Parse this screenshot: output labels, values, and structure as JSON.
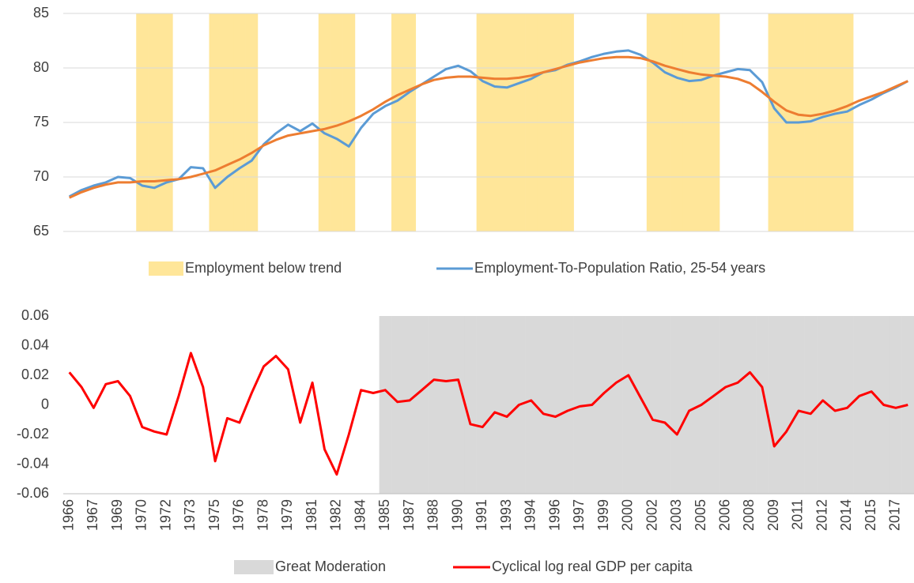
{
  "chart_data": [
    {
      "type": "combo",
      "ylim": [
        65,
        85
      ],
      "yticks": [
        65,
        70,
        75,
        80,
        85
      ],
      "grid": true,
      "series": [
        {
          "name": "Employment below trend",
          "kind": "bar",
          "color": "#ffe699",
          "values": [
            null,
            null,
            null,
            null,
            null,
            null,
            85,
            85,
            85,
            null,
            null,
            null,
            85,
            85,
            85,
            85,
            null,
            null,
            null,
            null,
            null,
            85,
            85,
            85,
            null,
            null,
            null,
            85,
            85,
            null,
            null,
            null,
            null,
            null,
            85,
            85,
            85,
            85,
            85,
            85,
            85,
            85,
            null,
            null,
            null,
            null,
            null,
            null,
            85,
            85,
            85,
            85,
            85,
            85,
            null,
            null,
            null,
            null,
            85,
            85,
            85,
            85,
            85,
            85,
            85,
            null,
            null,
            null,
            null,
            null
          ]
        },
        {
          "name": "Employment-To-Population Ratio, 25-54 years",
          "kind": "line",
          "color": "#5b9bd5",
          "values": [
            68.2,
            68.8,
            69.2,
            69.5,
            70.0,
            69.9,
            69.2,
            69.0,
            69.5,
            69.8,
            70.9,
            70.8,
            69.0,
            70.0,
            70.8,
            71.5,
            73.0,
            74.0,
            74.8,
            74.2,
            74.9,
            74.0,
            73.5,
            72.8,
            74.5,
            75.8,
            76.5,
            77.0,
            77.8,
            78.5,
            79.2,
            79.9,
            80.2,
            79.7,
            78.8,
            78.3,
            78.2,
            78.6,
            79.0,
            79.6,
            79.8,
            80.3,
            80.6,
            81.0,
            81.3,
            81.5,
            81.6,
            81.2,
            80.5,
            79.6,
            79.1,
            78.8,
            78.9,
            79.3,
            79.6,
            79.9,
            79.8,
            78.7,
            76.3,
            75.0,
            75.0,
            75.1,
            75.5,
            75.8,
            76.0,
            76.6,
            77.1,
            77.7,
            78.2,
            78.8
          ]
        },
        {
          "kind": "line",
          "color": "#ed7d31",
          "values": [
            68.1,
            68.6,
            69.0,
            69.3,
            69.5,
            69.5,
            69.6,
            69.6,
            69.7,
            69.8,
            70.0,
            70.3,
            70.6,
            71.1,
            71.6,
            72.2,
            72.9,
            73.4,
            73.8,
            74.0,
            74.2,
            74.4,
            74.7,
            75.1,
            75.6,
            76.2,
            76.9,
            77.5,
            78.0,
            78.5,
            78.9,
            79.1,
            79.2,
            79.2,
            79.1,
            79.0,
            79.0,
            79.1,
            79.3,
            79.6,
            79.9,
            80.2,
            80.5,
            80.7,
            80.9,
            81.0,
            81.0,
            80.9,
            80.6,
            80.2,
            79.9,
            79.6,
            79.4,
            79.3,
            79.2,
            79.0,
            78.6,
            77.8,
            76.9,
            76.1,
            75.7,
            75.6,
            75.8,
            76.1,
            76.5,
            77.0,
            77.4,
            77.8,
            78.3,
            78.8
          ]
        }
      ]
    },
    {
      "type": "combo",
      "ylim": [
        -0.06,
        0.06
      ],
      "yticks": [
        -0.06,
        -0.04,
        -0.02,
        0,
        0.02,
        0.04,
        0.06
      ],
      "grid": false,
      "categories": [
        "1966",
        null,
        "1967",
        null,
        "1969",
        null,
        "1970",
        null,
        "1972",
        null,
        "1973",
        null,
        "1975",
        null,
        "1976",
        null,
        "1978",
        null,
        "1979",
        null,
        "1981",
        null,
        "1982",
        null,
        "1984",
        null,
        "1985",
        null,
        "1987",
        null,
        "1988",
        null,
        "1990",
        null,
        "1991",
        null,
        "1993",
        null,
        "1994",
        null,
        "1996",
        null,
        "1997",
        null,
        "1999",
        null,
        "2000",
        null,
        "2002",
        null,
        "2003",
        null,
        "2005",
        null,
        "2006",
        null,
        "2008",
        null,
        "2009",
        null,
        "2011",
        null,
        "2012",
        null,
        "2014",
        null,
        "2015",
        null,
        "2017",
        null
      ],
      "series": [
        {
          "name": "Great Moderation",
          "kind": "bar",
          "color": "#d9d9d9",
          "values": [
            null,
            null,
            null,
            null,
            null,
            null,
            null,
            null,
            null,
            null,
            null,
            null,
            null,
            null,
            null,
            null,
            null,
            null,
            null,
            null,
            null,
            null,
            null,
            null,
            null,
            null,
            0.06,
            0.06,
            0.06,
            0.06,
            0.06,
            0.06,
            0.06,
            0.06,
            0.06,
            0.06,
            0.06,
            0.06,
            0.06,
            0.06,
            0.06,
            0.06,
            0.06,
            0.06,
            0.06,
            0.06,
            0.06,
            0.06,
            0.06,
            0.06,
            0.06,
            0.06,
            0.06,
            0.06,
            0.06,
            0.06,
            0.06,
            0.06,
            0.06,
            0.06,
            0.06,
            0.06,
            0.06,
            0.06,
            0.06,
            0.06,
            0.06,
            0.06,
            0.06,
            0.06
          ]
        },
        {
          "name": "Cyclical log real GDP per capita",
          "kind": "line",
          "color": "#ff0000",
          "values": [
            0.022,
            0.012,
            -0.002,
            0.014,
            0.016,
            0.006,
            -0.015,
            -0.018,
            -0.02,
            0.006,
            0.035,
            0.012,
            -0.038,
            -0.009,
            -0.012,
            0.008,
            0.026,
            0.033,
            0.024,
            -0.012,
            0.015,
            -0.03,
            -0.047,
            -0.02,
            0.01,
            0.008,
            0.01,
            0.002,
            0.003,
            0.01,
            0.017,
            0.016,
            0.017,
            -0.013,
            -0.015,
            -0.005,
            -0.008,
            0.0,
            0.003,
            -0.006,
            -0.008,
            -0.004,
            -0.001,
            0.0,
            0.008,
            0.015,
            0.02,
            0.005,
            -0.01,
            -0.012,
            -0.02,
            -0.004,
            0.0,
            0.006,
            0.012,
            0.015,
            0.022,
            0.012,
            -0.028,
            -0.018,
            -0.004,
            -0.006,
            0.003,
            -0.004,
            -0.002,
            0.006,
            0.009,
            0.0,
            -0.002,
            0.0
          ]
        }
      ]
    }
  ]
}
